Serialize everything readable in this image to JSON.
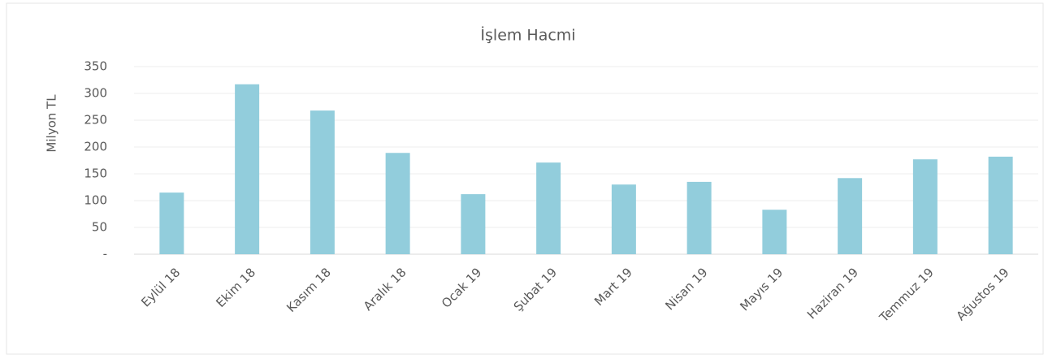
{
  "chart_data": {
    "type": "bar",
    "title": "İşlem Hacmi",
    "y_label": "Milyon TL",
    "categories": [
      "Eylül 18",
      "Ekim 18",
      "Kasım 18",
      "Aralık 18",
      "Ocak 19",
      "Şubat 19",
      "Mart 19",
      "Nisan 19",
      "Mayıs 19",
      "Haziran 19",
      "Temmuz 19",
      "Ağustos 19"
    ],
    "values": [
      115,
      317,
      268,
      189,
      112,
      171,
      130,
      135,
      83,
      142,
      177,
      182
    ],
    "color": "#92cddc",
    "ylim": [
      0,
      350
    ],
    "yticks": [
      {
        "value": 0,
        "label": "-"
      },
      50,
      100,
      150,
      200,
      250,
      300,
      350
    ],
    "grid": true
  }
}
